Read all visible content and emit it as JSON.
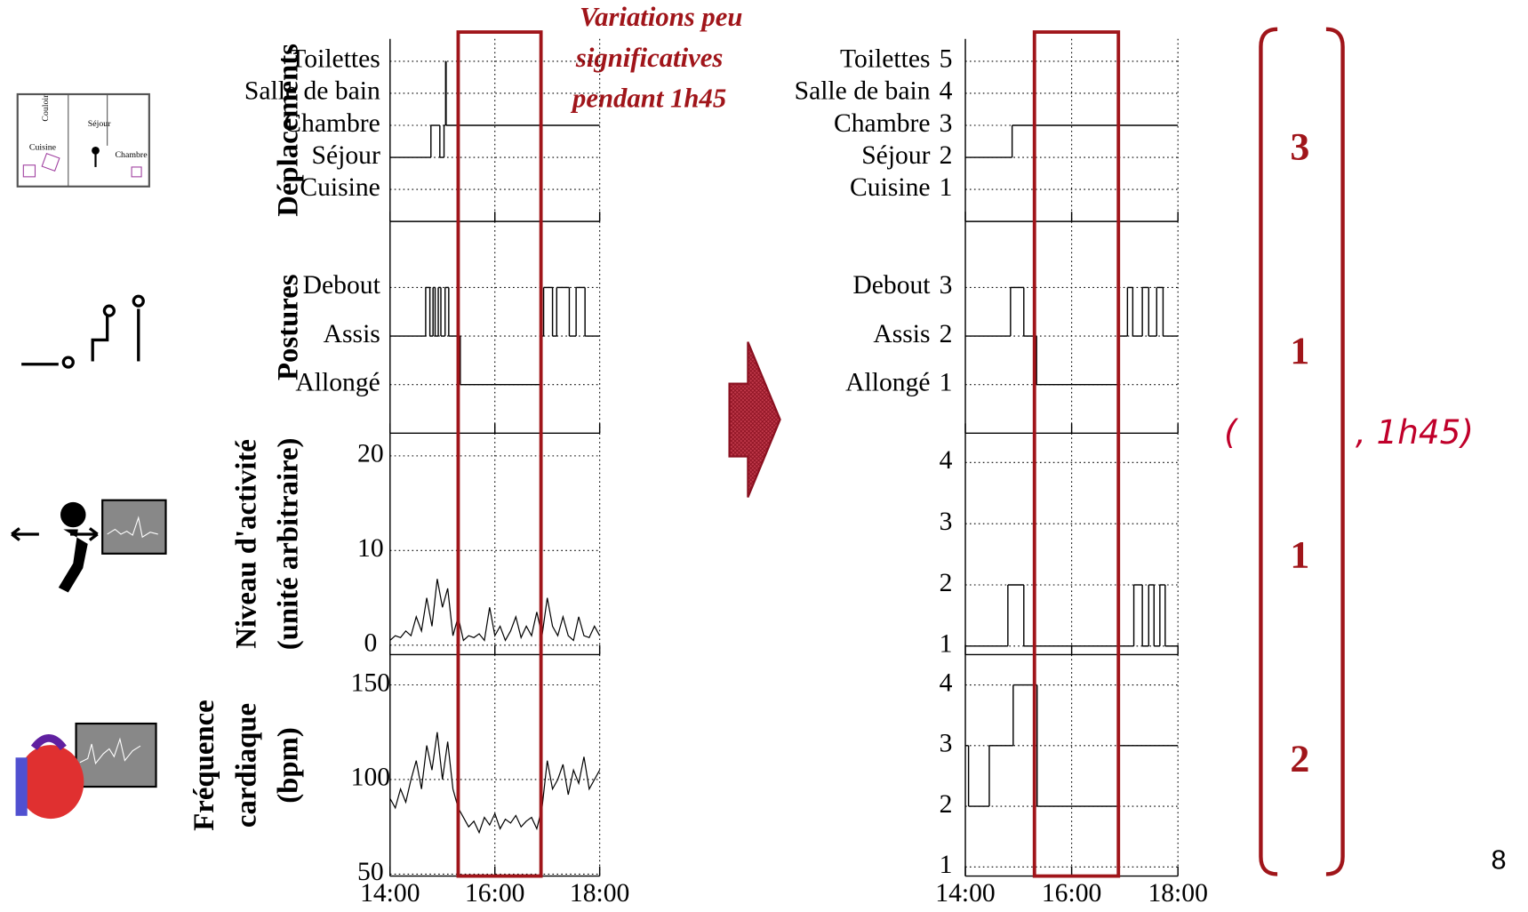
{
  "annotation": [
    "Variations peu",
    "significatives",
    "pendant 1h45"
  ],
  "highlight": {
    "from": 15.3,
    "to": 16.88
  },
  "icons": {
    "floorplan": [
      "Couloir",
      "Séjour",
      "Cuisine",
      "Chambre"
    ]
  },
  "vector": {
    "open": "(",
    "values": [
      "3",
      "1",
      "1",
      "2"
    ],
    "close": ", 1h45)"
  },
  "page_number": "8",
  "chart_data": [
    {
      "type": "step",
      "ylabel": [
        "Déplacements"
      ],
      "x": [
        14,
        14.78,
        14.95,
        15.03,
        15.06,
        15.07
      ],
      "values": [
        2,
        3,
        2,
        3,
        5,
        3
      ],
      "xlim": [
        14,
        18
      ],
      "ylim": [
        0,
        5.7
      ],
      "yticks": [
        {
          "value": 1,
          "label": "Cuisine"
        },
        {
          "value": 2,
          "label": "Séjour"
        },
        {
          "value": 3,
          "label": "Chambre"
        },
        {
          "value": 4,
          "label": "Salle de bain"
        },
        {
          "value": 5,
          "label": "Toilettes"
        }
      ]
    },
    {
      "type": "step",
      "ylabel": [
        "Postures"
      ],
      "x": [
        14,
        14.68,
        14.76,
        14.82,
        14.86,
        14.92,
        14.97,
        15.05,
        15.12,
        15.34,
        16.9,
        16.93,
        17.1,
        17.18,
        17.42,
        17.55,
        17.72
      ],
      "values": [
        2,
        3,
        2,
        3,
        2,
        3,
        2,
        3,
        2,
        1,
        2,
        3,
        2,
        3,
        2,
        3,
        2
      ],
      "xlim": [
        14,
        18
      ],
      "ylim": [
        0,
        4.36
      ],
      "yticks": [
        {
          "value": 1,
          "label": "Allongé"
        },
        {
          "value": 2,
          "label": "Assis"
        },
        {
          "value": 3,
          "label": "Debout"
        }
      ]
    },
    {
      "type": "line",
      "ylabel": [
        "Niveau d'activité",
        "(unité arbitraire)"
      ],
      "x": [
        14,
        14.1,
        14.2,
        14.3,
        14.4,
        14.5,
        14.6,
        14.7,
        14.8,
        14.9,
        15,
        15.1,
        15.2,
        15.3,
        15.4,
        15.5,
        15.6,
        15.7,
        15.8,
        15.9,
        16,
        16.1,
        16.2,
        16.3,
        16.4,
        16.5,
        16.6,
        16.7,
        16.8,
        16.9,
        17,
        17.1,
        17.2,
        17.3,
        17.4,
        17.5,
        17.6,
        17.7,
        17.8,
        17.9,
        18
      ],
      "values": [
        0.5,
        1,
        0.8,
        1.5,
        1,
        3,
        1.5,
        5,
        2,
        7,
        4,
        6,
        1,
        3,
        0.5,
        1,
        0.8,
        1.2,
        0.5,
        4,
        1,
        2,
        0.5,
        1.5,
        3,
        0.8,
        2,
        1,
        3.5,
        1,
        5,
        2,
        1,
        3,
        1,
        0.5,
        3,
        1,
        0.8,
        2,
        1
      ],
      "xlim": [
        14,
        18
      ],
      "ylim": [
        -1,
        22.4
      ],
      "yticks": [
        0,
        10,
        20
      ]
    },
    {
      "type": "line",
      "ylabel": [
        "Fréquence",
        "cardiaque",
        "(bpm)"
      ],
      "x": [
        14,
        14.1,
        14.2,
        14.3,
        14.4,
        14.5,
        14.6,
        14.7,
        14.8,
        14.9,
        15,
        15.1,
        15.2,
        15.3,
        15.4,
        15.5,
        15.6,
        15.7,
        15.8,
        15.9,
        16,
        16.1,
        16.2,
        16.3,
        16.4,
        16.5,
        16.6,
        16.7,
        16.8,
        16.9,
        17,
        17.1,
        17.2,
        17.3,
        17.4,
        17.5,
        17.6,
        17.7,
        17.8,
        17.9,
        18
      ],
      "values": [
        90,
        85,
        95,
        88,
        100,
        110,
        95,
        118,
        105,
        125,
        100,
        120,
        95,
        85,
        80,
        75,
        78,
        72,
        80,
        76,
        82,
        74,
        79,
        77,
        81,
        75,
        78,
        80,
        74,
        85,
        110,
        95,
        100,
        108,
        92,
        105,
        98,
        112,
        95,
        100,
        105
      ],
      "xlim": [
        14,
        18
      ],
      "ylim": [
        49,
        166
      ],
      "yticks": [
        50,
        100,
        150
      ],
      "xticks": [
        {
          "value": 14,
          "label": "14:00"
        },
        {
          "value": 16,
          "label": "16:00"
        },
        {
          "value": 18,
          "label": "18:00"
        }
      ]
    },
    {
      "type": "step",
      "x": [
        14,
        14.88
      ],
      "values": [
        2,
        3
      ],
      "xlim": [
        14,
        18
      ],
      "ylim": [
        0,
        5.7
      ],
      "yticks": [
        1,
        2,
        3,
        4,
        5
      ],
      "ytick_names": [
        "Cuisine",
        "Séjour",
        "Chambre",
        "Salle de bain",
        "Toilettes"
      ]
    },
    {
      "type": "step",
      "x": [
        14,
        14.85,
        15.1,
        15.34,
        16.88,
        17.05,
        17.15,
        17.33,
        17.45,
        17.6,
        17.72
      ],
      "values": [
        2,
        3,
        2,
        1,
        2,
        3,
        2,
        3,
        2,
        3,
        2
      ],
      "xlim": [
        14,
        18
      ],
      "ylim": [
        0,
        4.36
      ],
      "yticks": [
        1,
        2,
        3
      ],
      "ytick_names": [
        "Allongé",
        "Assis",
        "Debout"
      ]
    },
    {
      "type": "step",
      "x": [
        14,
        14.8,
        15.1,
        17.17,
        17.33,
        17.45,
        17.55,
        17.66,
        17.76
      ],
      "values": [
        1,
        2,
        1,
        2,
        1,
        2,
        1,
        2,
        1
      ],
      "xlim": [
        14,
        18
      ],
      "ylim": [
        0.86,
        4.48
      ],
      "yticks": [
        1,
        2,
        3,
        4
      ]
    },
    {
      "type": "step",
      "x": [
        14,
        14.06,
        14.45,
        14.9,
        15.35,
        16.88
      ],
      "values": [
        3,
        2,
        3,
        4,
        2,
        3
      ],
      "xlim": [
        14,
        18
      ],
      "ylim": [
        0.85,
        4.5
      ],
      "yticks": [
        1,
        2,
        3,
        4
      ],
      "xticks": [
        {
          "value": 14,
          "label": "14:00"
        },
        {
          "value": 16,
          "label": "16:00"
        },
        {
          "value": 18,
          "label": "18:00"
        }
      ]
    }
  ]
}
